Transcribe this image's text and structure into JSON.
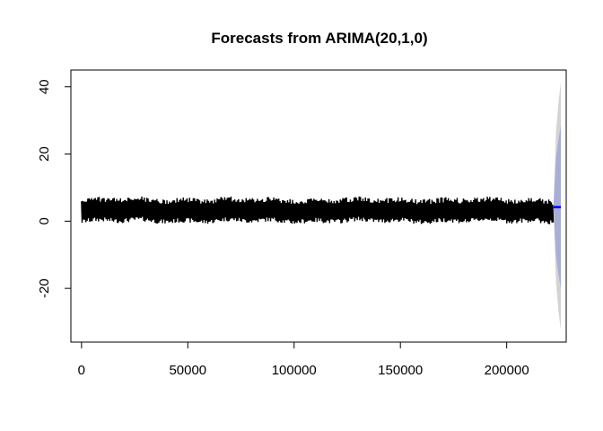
{
  "chart_data": {
    "type": "line",
    "title": "Forecasts from ARIMA(20,1,0)",
    "xlabel": "",
    "ylabel": "",
    "xlim": [
      -5000,
      228000
    ],
    "ylim": [
      -36,
      45
    ],
    "x_ticks": [
      0,
      50000,
      100000,
      150000,
      200000
    ],
    "x_tick_labels": [
      "0",
      "50000",
      "100000",
      "150000",
      "200000"
    ],
    "y_ticks": [
      -20,
      0,
      20,
      40
    ],
    "y_tick_labels": [
      "-20",
      "0",
      "20",
      "40"
    ],
    "grid": false,
    "legend": "none",
    "series": [
      {
        "role": "observed",
        "color": "#000000",
        "x_range": [
          0,
          222000
        ],
        "center": 3.3,
        "band_low": -0.5,
        "band_high": 7.0
      },
      {
        "role": "point-forecast",
        "color": "#0000ff",
        "x": [
          222000,
          225500
        ],
        "y": [
          4.2,
          4.2
        ]
      },
      {
        "role": "interval-95",
        "color": "#d3d3d3",
        "x": [
          222000,
          223200,
          224400,
          225500
        ],
        "lower": [
          4.2,
          -18,
          -27,
          -32.5
        ],
        "upper": [
          4.2,
          26.5,
          35.5,
          41.5
        ]
      },
      {
        "role": "interval-80",
        "color": "#a9aed4",
        "x": [
          222000,
          223200,
          224400,
          225500
        ],
        "lower": [
          4.2,
          -10,
          -16,
          -20
        ],
        "upper": [
          4.2,
          18.5,
          24.5,
          28.5
        ]
      }
    ]
  }
}
